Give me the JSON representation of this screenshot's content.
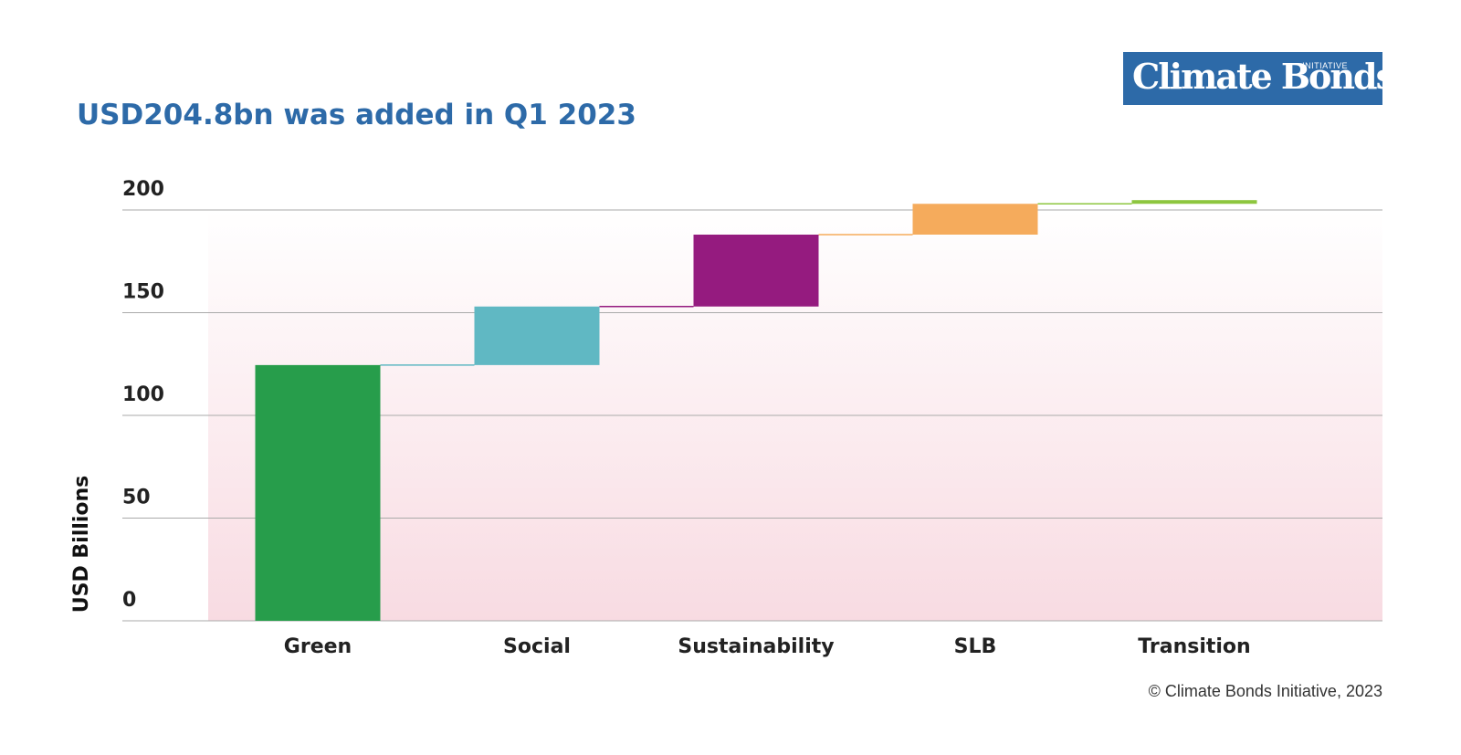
{
  "logo": {
    "word": "Climate Bonds",
    "initiative": "INITIATIVE"
  },
  "copyright": "© Climate Bonds Initiative, 2023",
  "chart_data": {
    "type": "bar",
    "subtype": "waterfall",
    "title": "USD204.8bn was added in Q1 2023",
    "ylabel": "USD Billions",
    "xlabel": "",
    "ylim": [
      0,
      200
    ],
    "yticks": [
      0,
      50,
      100,
      150,
      200
    ],
    "grid": true,
    "categories": [
      "Green",
      "Social",
      "Sustainability",
      "SLB",
      "Transition"
    ],
    "values": [
      124.5,
      28.5,
      35.0,
      15.0,
      1.8
    ],
    "colors": [
      "#279d4b",
      "#60b8c3",
      "#951b7f",
      "#f5ab5c",
      "#8dc63f"
    ],
    "background_gradient": [
      "#ffffff",
      "#f8dbe2"
    ]
  }
}
